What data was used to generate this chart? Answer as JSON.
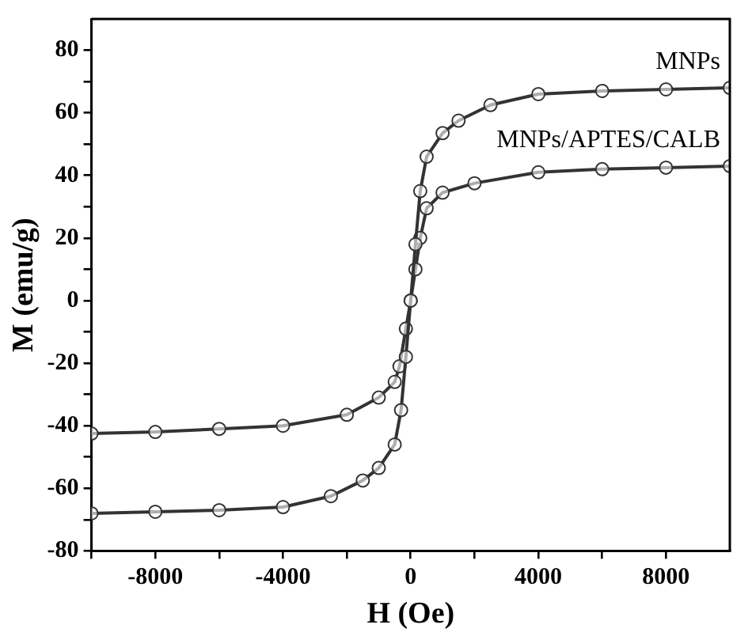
{
  "chart_data": {
    "type": "line",
    "xlabel": "H (Oe)",
    "ylabel": "M (emu/g)",
    "xlim": [
      -10000,
      10000
    ],
    "ylim": [
      -80,
      90
    ],
    "xticks": [
      {
        "value": -10000,
        "label": null
      },
      -8000,
      {
        "value": -6000,
        "label": null
      },
      -4000,
      {
        "value": -2000,
        "label": null
      },
      0,
      {
        "value": 2000,
        "label": null
      },
      4000,
      {
        "value": 6000,
        "label": null
      },
      8000
    ],
    "yticks": [
      -80,
      {
        "value": -70,
        "label": null
      },
      -60,
      {
        "value": -50,
        "label": null
      },
      -40,
      {
        "value": -30,
        "label": null
      },
      -20,
      {
        "value": -10,
        "label": null
      },
      0,
      {
        "value": 10,
        "label": null
      },
      20,
      {
        "value": 30,
        "label": null
      },
      40,
      {
        "value": 50,
        "label": null
      },
      60,
      {
        "value": 70,
        "label": null
      },
      80
    ],
    "grid": false,
    "legend": false,
    "marker": "circle",
    "line_style": "solid",
    "series": [
      {
        "name": "MNPs",
        "color": "#333333",
        "x": [
          -10000,
          -8000,
          -6000,
          -4000,
          -2500,
          -1500,
          -1000,
          -500,
          -300,
          -150,
          0,
          150,
          300,
          500,
          1000,
          1500,
          2500,
          4000,
          6000,
          8000,
          10000
        ],
        "values": [
          -68,
          -67.5,
          -67,
          -66,
          -62.5,
          -57.5,
          -53.5,
          -46,
          -35,
          -18,
          0,
          18,
          35,
          46,
          53.5,
          57.5,
          62.5,
          66,
          67,
          67.5,
          68
        ]
      },
      {
        "name": "MNPs/APTES/CALB",
        "color": "#333333",
        "x": [
          -10000,
          -8000,
          -6000,
          -4000,
          -2000,
          -1000,
          -500,
          -350,
          -150,
          0,
          150,
          300,
          500,
          1000,
          2000,
          4000,
          6000,
          8000,
          10000
        ],
        "values": [
          -42.5,
          -42,
          -41,
          -40,
          -36.5,
          -31,
          -26,
          -21,
          -9,
          0,
          10,
          20,
          29.5,
          34.5,
          37.5,
          41,
          42,
          42.5,
          43
        ]
      }
    ]
  }
}
